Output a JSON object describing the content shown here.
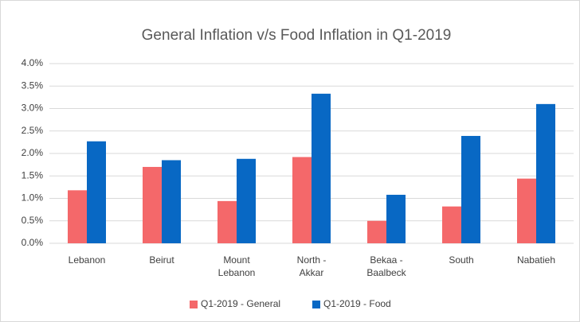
{
  "chart_data": {
    "type": "bar",
    "title": "General Inflation v/s Food Inflation in Q1-2019",
    "categories": [
      "Lebanon",
      "Beirut",
      "Mount\nLebanon",
      "North -\nAkkar",
      "Bekaa -\nBaalbeck",
      "South",
      "Nabatieh"
    ],
    "series": [
      {
        "name": "Q1-2019 - General",
        "color": "#f4686a",
        "values": [
          1.18,
          1.7,
          0.94,
          1.92,
          0.5,
          0.82,
          1.44
        ]
      },
      {
        "name": "Q1-2019 - Food",
        "color": "#0868c4",
        "values": [
          2.27,
          1.85,
          1.88,
          3.33,
          1.08,
          2.39,
          3.1
        ]
      }
    ],
    "ylim": [
      0,
      4
    ],
    "yticks": [
      {
        "value": 0,
        "label": "0.0%"
      },
      {
        "value": 0.5,
        "label": "0.5%"
      },
      {
        "value": 1,
        "label": "1.0%"
      },
      {
        "value": 1.5,
        "label": "1.5%"
      },
      {
        "value": 2,
        "label": "2.0%"
      },
      {
        "value": 2.5,
        "label": "2.5%"
      },
      {
        "value": 3,
        "label": "3.0%"
      },
      {
        "value": 3.5,
        "label": "3.5%"
      },
      {
        "value": 4,
        "label": "4.0%"
      }
    ],
    "grid": true,
    "legend": "bottom"
  }
}
